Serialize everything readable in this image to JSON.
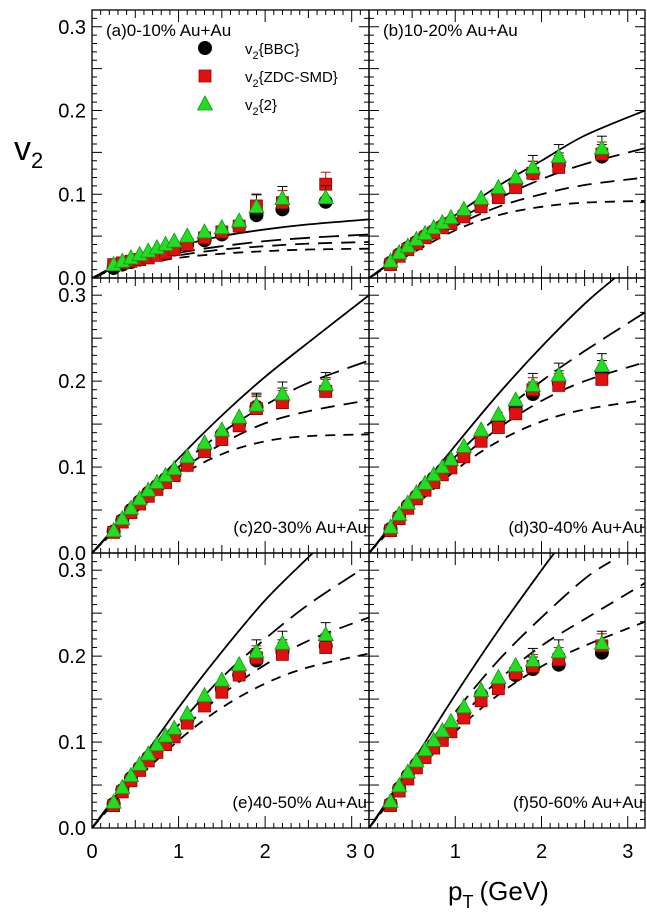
{
  "chart_data": {
    "type": "scatter",
    "ylabel": "v",
    "ylabel_sub": "2",
    "xlabel": "p",
    "xlabel_sub": "T",
    "xlabel_unit": "(GeV)",
    "xlim": [
      0,
      3.2
    ],
    "ylim": [
      0,
      0.32
    ],
    "x_ticks": [
      0,
      1,
      2,
      3
    ],
    "y_ticks": [
      "0.0",
      "0.1",
      "0.2",
      "0.3"
    ],
    "x_tick_labels": [
      "0",
      "1",
      "2",
      "3"
    ],
    "legend": [
      {
        "key": "bbc",
        "prefix": "v",
        "sub": "2",
        "suffix": "{BBC}",
        "color": "#000000",
        "marker": "circle"
      },
      {
        "key": "zdc",
        "prefix": "v",
        "sub": "2",
        "suffix": "{ZDC-SMD}",
        "color": "#e01010",
        "marker": "square"
      },
      {
        "key": "two",
        "prefix": "v",
        "sub": "2",
        "suffix": "{2}",
        "color": "#22dd22",
        "marker": "triangle"
      }
    ],
    "curve_styles": [
      "solid",
      "long-dash",
      "medium-dash",
      "short-dash"
    ],
    "pt": [
      0.25,
      0.35,
      0.45,
      0.55,
      0.65,
      0.75,
      0.85,
      0.95,
      1.1,
      1.3,
      1.5,
      1.7,
      1.9,
      2.2,
      2.7
    ],
    "panels": [
      {
        "label": "(a)0-10% Au+Au",
        "label_pos": "top-left",
        "bbc": [
          0.012,
          0.016,
          0.019,
          0.022,
          0.025,
          0.028,
          0.031,
          0.034,
          0.04,
          0.045,
          0.052,
          0.062,
          0.075,
          0.082,
          0.091
        ],
        "zdc": [
          0.016,
          0.018,
          0.02,
          0.022,
          0.024,
          0.027,
          0.03,
          0.034,
          0.04,
          0.048,
          0.055,
          0.062,
          0.086,
          0.09,
          0.112
        ],
        "two": [
          0.016,
          0.02,
          0.024,
          0.028,
          0.032,
          0.036,
          0.04,
          0.044,
          0.05,
          0.055,
          0.06,
          0.068,
          0.085,
          0.095,
          0.096
        ],
        "curves": [
          [
            [
              0,
              0
            ],
            [
              0.4,
              0.02
            ],
            [
              1,
              0.038
            ],
            [
              1.5,
              0.05
            ],
            [
              2,
              0.058
            ],
            [
              2.5,
              0.064
            ],
            [
              3.2,
              0.07
            ]
          ],
          [
            [
              0,
              0
            ],
            [
              0.4,
              0.017
            ],
            [
              1,
              0.03
            ],
            [
              1.5,
              0.038
            ],
            [
              2,
              0.044
            ],
            [
              2.5,
              0.048
            ],
            [
              3.2,
              0.052
            ]
          ],
          [
            [
              0,
              0
            ],
            [
              0.4,
              0.015
            ],
            [
              1,
              0.027
            ],
            [
              1.5,
              0.034
            ],
            [
              2,
              0.038
            ],
            [
              2.5,
              0.041
            ],
            [
              3.2,
              0.043
            ]
          ],
          [
            [
              0,
              0
            ],
            [
              0.4,
              0.013
            ],
            [
              1,
              0.024
            ],
            [
              1.5,
              0.029
            ],
            [
              2,
              0.032
            ],
            [
              2.5,
              0.034
            ],
            [
              3.2,
              0.035
            ]
          ]
        ]
      },
      {
        "label": "(b)10-20% Au+Au",
        "label_pos": "top-left",
        "bbc": [
          0.018,
          0.028,
          0.036,
          0.043,
          0.05,
          0.056,
          0.062,
          0.067,
          0.076,
          0.088,
          0.1,
          0.112,
          0.125,
          0.135,
          0.145
        ],
        "zdc": [
          0.016,
          0.026,
          0.034,
          0.041,
          0.048,
          0.054,
          0.06,
          0.065,
          0.073,
          0.085,
          0.096,
          0.108,
          0.125,
          0.132,
          0.148
        ],
        "two": [
          0.02,
          0.03,
          0.038,
          0.046,
          0.053,
          0.06,
          0.066,
          0.072,
          0.082,
          0.095,
          0.108,
          0.12,
          0.132,
          0.145,
          0.155
        ],
        "curves": [
          [
            [
              0,
              0
            ],
            [
              0.4,
              0.03
            ],
            [
              1,
              0.075
            ],
            [
              1.5,
              0.11
            ],
            [
              2,
              0.14
            ],
            [
              2.5,
              0.17
            ],
            [
              3.2,
              0.2
            ]
          ],
          [
            [
              0,
              0
            ],
            [
              0.4,
              0.028
            ],
            [
              1,
              0.068
            ],
            [
              1.5,
              0.095
            ],
            [
              2,
              0.118
            ],
            [
              2.5,
              0.136
            ],
            [
              3.2,
              0.155
            ]
          ],
          [
            [
              0,
              0
            ],
            [
              0.4,
              0.026
            ],
            [
              1,
              0.062
            ],
            [
              1.5,
              0.085
            ],
            [
              2,
              0.1
            ],
            [
              2.5,
              0.111
            ],
            [
              3.2,
              0.12
            ]
          ],
          [
            [
              0,
              0
            ],
            [
              0.4,
              0.024
            ],
            [
              1,
              0.057
            ],
            [
              1.5,
              0.075
            ],
            [
              2,
              0.085
            ],
            [
              2.5,
              0.09
            ],
            [
              3.2,
              0.092
            ]
          ]
        ]
      },
      {
        "label": "(c)20-30% Au+Au",
        "label_pos": "bottom-right",
        "bbc": [
          0.025,
          0.038,
          0.05,
          0.06,
          0.07,
          0.078,
          0.086,
          0.094,
          0.106,
          0.122,
          0.138,
          0.15,
          0.17,
          0.178,
          0.19
        ],
        "zdc": [
          0.024,
          0.036,
          0.047,
          0.057,
          0.066,
          0.074,
          0.082,
          0.09,
          0.102,
          0.118,
          0.132,
          0.148,
          0.168,
          0.175,
          0.188
        ],
        "two": [
          0.026,
          0.04,
          0.052,
          0.063,
          0.073,
          0.082,
          0.09,
          0.098,
          0.112,
          0.128,
          0.143,
          0.158,
          0.172,
          0.185,
          0.196
        ],
        "curves": [
          [
            [
              0,
              0
            ],
            [
              0.4,
              0.045
            ],
            [
              1,
              0.11
            ],
            [
              1.5,
              0.16
            ],
            [
              2,
              0.205
            ],
            [
              2.5,
              0.245
            ],
            [
              3.2,
              0.3
            ]
          ],
          [
            [
              0,
              0
            ],
            [
              0.4,
              0.042
            ],
            [
              1,
              0.1
            ],
            [
              1.5,
              0.14
            ],
            [
              2,
              0.172
            ],
            [
              2.5,
              0.198
            ],
            [
              3.2,
              0.224
            ]
          ],
          [
            [
              0,
              0
            ],
            [
              0.4,
              0.04
            ],
            [
              1,
              0.094
            ],
            [
              1.5,
              0.127
            ],
            [
              2,
              0.151
            ],
            [
              2.5,
              0.165
            ],
            [
              3.2,
              0.178
            ]
          ],
          [
            [
              0,
              0
            ],
            [
              0.4,
              0.038
            ],
            [
              1,
              0.088
            ],
            [
              1.5,
              0.115
            ],
            [
              2,
              0.13
            ],
            [
              2.5,
              0.136
            ],
            [
              3.2,
              0.138
            ]
          ]
        ]
      },
      {
        "label": "(d)30-40% Au+Au",
        "label_pos": "bottom-right",
        "bbc": [
          0.028,
          0.042,
          0.055,
          0.066,
          0.077,
          0.087,
          0.096,
          0.104,
          0.118,
          0.136,
          0.152,
          0.168,
          0.185,
          0.198,
          0.21
        ],
        "zdc": [
          0.026,
          0.04,
          0.052,
          0.063,
          0.073,
          0.082,
          0.091,
          0.099,
          0.112,
          0.13,
          0.146,
          0.162,
          0.19,
          0.195,
          0.202
        ],
        "two": [
          0.03,
          0.045,
          0.058,
          0.07,
          0.081,
          0.091,
          0.1,
          0.109,
          0.124,
          0.143,
          0.161,
          0.178,
          0.195,
          0.207,
          0.218
        ],
        "curves": [
          [
            [
              0,
              0
            ],
            [
              0.4,
              0.05
            ],
            [
              1,
              0.125
            ],
            [
              1.5,
              0.185
            ],
            [
              2,
              0.24
            ],
            [
              2.5,
              0.29
            ],
            [
              2.85,
              0.32
            ]
          ],
          [
            [
              0,
              0
            ],
            [
              0.4,
              0.047
            ],
            [
              1,
              0.112
            ],
            [
              1.5,
              0.16
            ],
            [
              2,
              0.2
            ],
            [
              2.5,
              0.235
            ],
            [
              3.2,
              0.28
            ]
          ],
          [
            [
              0,
              0
            ],
            [
              0.4,
              0.045
            ],
            [
              1,
              0.104
            ],
            [
              1.5,
              0.145
            ],
            [
              2,
              0.177
            ],
            [
              2.5,
              0.2
            ],
            [
              3.2,
              0.222
            ]
          ],
          [
            [
              0,
              0
            ],
            [
              0.4,
              0.042
            ],
            [
              1,
              0.096
            ],
            [
              1.5,
              0.13
            ],
            [
              2,
              0.153
            ],
            [
              2.5,
              0.167
            ],
            [
              3.2,
              0.178
            ]
          ]
        ]
      },
      {
        "label": "(e)40-50% Au+Au",
        "label_pos": "bottom-right",
        "bbc": [
          0.028,
          0.044,
          0.058,
          0.07,
          0.082,
          0.092,
          0.101,
          0.11,
          0.126,
          0.146,
          0.162,
          0.178,
          0.195,
          0.205,
          0.212
        ],
        "zdc": [
          0.026,
          0.042,
          0.055,
          0.067,
          0.078,
          0.088,
          0.097,
          0.106,
          0.122,
          0.142,
          0.158,
          0.178,
          0.198,
          0.202,
          0.21
        ],
        "two": [
          0.03,
          0.047,
          0.061,
          0.074,
          0.086,
          0.097,
          0.107,
          0.116,
          0.133,
          0.154,
          0.172,
          0.19,
          0.205,
          0.215,
          0.225
        ],
        "curves": [
          [
            [
              0,
              0
            ],
            [
              0.4,
              0.055
            ],
            [
              1,
              0.14
            ],
            [
              1.5,
              0.205
            ],
            [
              2,
              0.265
            ],
            [
              2.5,
              0.315
            ],
            [
              2.55,
              0.32
            ]
          ],
          [
            [
              0,
              0
            ],
            [
              0.4,
              0.05
            ],
            [
              1,
              0.12
            ],
            [
              1.5,
              0.175
            ],
            [
              2,
              0.22
            ],
            [
              2.5,
              0.26
            ],
            [
              3.1,
              0.3
            ]
          ],
          [
            [
              0,
              0
            ],
            [
              0.4,
              0.048
            ],
            [
              1,
              0.11
            ],
            [
              1.5,
              0.155
            ],
            [
              2,
              0.19
            ],
            [
              2.5,
              0.218
            ],
            [
              3.2,
              0.245
            ]
          ],
          [
            [
              0,
              0
            ],
            [
              0.4,
              0.045
            ],
            [
              1,
              0.102
            ],
            [
              1.5,
              0.14
            ],
            [
              2,
              0.168
            ],
            [
              2.5,
              0.187
            ],
            [
              3.2,
              0.203
            ]
          ]
        ]
      },
      {
        "label": "(f)50-60% Au+Au",
        "label_pos": "bottom-right",
        "bbc": [
          0.028,
          0.046,
          0.061,
          0.074,
          0.086,
          0.097,
          0.107,
          0.117,
          0.134,
          0.155,
          0.165,
          0.178,
          0.185,
          0.19,
          0.204
        ],
        "zdc": [
          0.026,
          0.043,
          0.057,
          0.07,
          0.082,
          0.093,
          0.102,
          0.112,
          0.128,
          0.148,
          0.162,
          0.18,
          0.188,
          0.196,
          0.212
        ],
        "two": [
          0.031,
          0.049,
          0.065,
          0.078,
          0.091,
          0.102,
          0.113,
          0.124,
          0.141,
          0.16,
          0.175,
          0.189,
          0.195,
          0.205,
          0.215
        ],
        "curves": [
          [
            [
              0,
              0
            ],
            [
              0.4,
              0.06
            ],
            [
              1,
              0.155
            ],
            [
              1.5,
              0.23
            ],
            [
              2,
              0.3
            ],
            [
              2.15,
              0.32
            ]
          ],
          [
            [
              0,
              0
            ],
            [
              0.4,
              0.055
            ],
            [
              1,
              0.135
            ],
            [
              1.5,
              0.195
            ],
            [
              2,
              0.245
            ],
            [
              2.5,
              0.29
            ],
            [
              2.8,
              0.31
            ]
          ],
          [
            [
              0,
              0
            ],
            [
              0.4,
              0.052
            ],
            [
              1,
              0.122
            ],
            [
              1.5,
              0.172
            ],
            [
              2,
              0.212
            ],
            [
              2.5,
              0.243
            ],
            [
              3.2,
              0.285
            ]
          ],
          [
            [
              0,
              0
            ],
            [
              0.4,
              0.049
            ],
            [
              1,
              0.112
            ],
            [
              1.5,
              0.155
            ],
            [
              2,
              0.188
            ],
            [
              2.5,
              0.212
            ],
            [
              3.2,
              0.24
            ]
          ]
        ]
      }
    ]
  }
}
